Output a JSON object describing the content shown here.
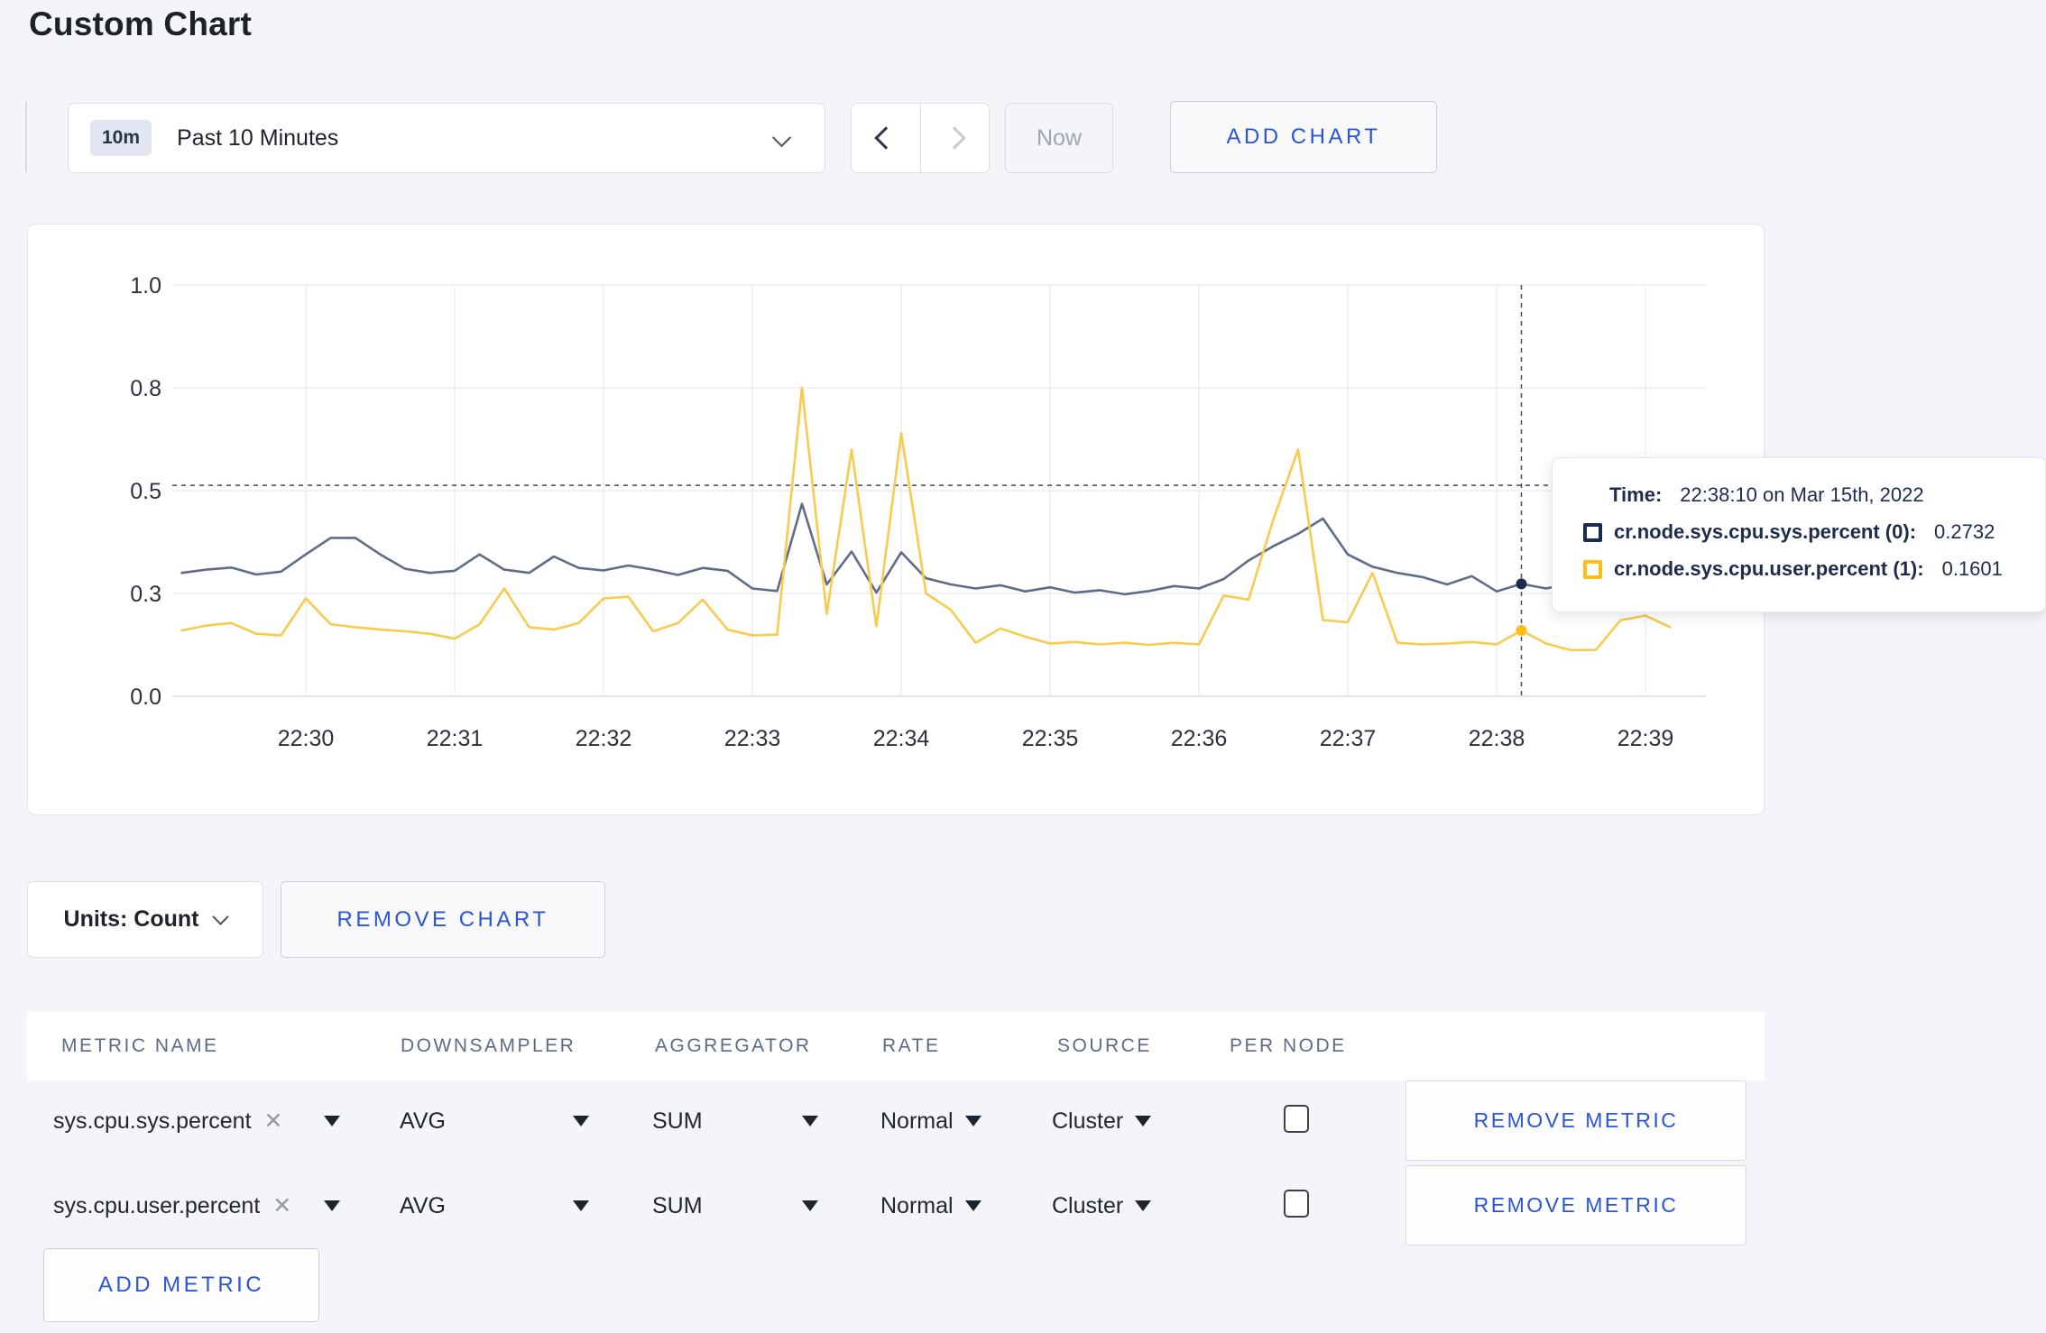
{
  "page": {
    "title": "Custom Chart"
  },
  "toolbar": {
    "time_badge": "10m",
    "time_label": "Past 10 Minutes",
    "now_label": "Now",
    "add_chart_label": "ADD CHART"
  },
  "tooltip": {
    "time_label": "Time:",
    "time_value": "22:38:10 on Mar 15th, 2022"
  },
  "units": {
    "label": "Units: Count",
    "remove_chart_label": "REMOVE CHART"
  },
  "metrics_table": {
    "headers": [
      "METRIC NAME",
      "DOWNSAMPLER",
      "AGGREGATOR",
      "RATE",
      "SOURCE",
      "PER NODE"
    ],
    "clear_icon": "✕",
    "rows": [
      {
        "metric": "sys.cpu.sys.percent",
        "downsampler": "AVG",
        "aggregator": "SUM",
        "rate": "Normal",
        "source": "Cluster",
        "per_node_checked": false,
        "remove_label": "REMOVE METRIC"
      },
      {
        "metric": "sys.cpu.user.percent",
        "downsampler": "AVG",
        "aggregator": "SUM",
        "rate": "Normal",
        "source": "Cluster",
        "per_node_checked": false,
        "remove_label": "REMOVE METRIC"
      }
    ],
    "add_metric_label": "ADD METRIC"
  },
  "chart_data": {
    "type": "line",
    "title": "",
    "grid": true,
    "legend_position": "tooltip",
    "sample_interval_sec": 10,
    "start_time": "22:29:10",
    "x_axis": {
      "labels": [
        "22:30",
        "22:31",
        "22:32",
        "22:33",
        "22:34",
        "22:35",
        "22:36",
        "22:37",
        "22:38",
        "22:39"
      ],
      "tick_start_sec": 50,
      "tick_interval_sec": 60
    },
    "y_axis": {
      "ylim": [
        0,
        1
      ],
      "ticks": [
        {
          "label": "0.0",
          "value": 0
        },
        {
          "label": "0.3",
          "value": 0.25
        },
        {
          "label": "0.5",
          "value": 0.5
        },
        {
          "label": "0.8",
          "value": 0.75
        },
        {
          "label": "1.0",
          "value": 1.0
        }
      ]
    },
    "crosshair": {
      "sec": 540,
      "time": "22:38:10",
      "hline_value": 0.513
    },
    "series": [
      {
        "name": "cr.node.sys.cpu.sys.percent",
        "tooltip_label": "cr.node.sys.cpu.sys.percent (0):",
        "tooltip_value": "0.2732",
        "highlight_value": 0.2732,
        "line_color": "#5f6c87",
        "swatch_color": "#1c2c4f",
        "values": [
          0.3,
          0.308,
          0.313,
          0.296,
          0.303,
          0.345,
          0.385,
          0.385,
          0.345,
          0.31,
          0.3,
          0.305,
          0.345,
          0.308,
          0.3,
          0.34,
          0.312,
          0.306,
          0.318,
          0.308,
          0.295,
          0.312,
          0.305,
          0.262,
          0.256,
          0.468,
          0.272,
          0.352,
          0.252,
          0.35,
          0.287,
          0.272,
          0.262,
          0.27,
          0.255,
          0.265,
          0.252,
          0.258,
          0.248,
          0.256,
          0.268,
          0.262,
          0.285,
          0.33,
          0.365,
          0.395,
          0.432,
          0.345,
          0.315,
          0.3,
          0.29,
          0.272,
          0.292,
          0.255,
          0.2732,
          0.262,
          0.275,
          0.285,
          0.295,
          0.292,
          0.29
        ]
      },
      {
        "name": "cr.node.sys.cpu.user.percent",
        "tooltip_label": "cr.node.sys.cpu.user.percent (1):",
        "tooltip_value": "0.1601",
        "highlight_value": 0.1601,
        "line_color": "#f8ca4e",
        "swatch_color": "#fdbe18",
        "values": [
          0.16,
          0.172,
          0.178,
          0.152,
          0.148,
          0.238,
          0.175,
          0.168,
          0.162,
          0.158,
          0.152,
          0.14,
          0.175,
          0.262,
          0.168,
          0.162,
          0.178,
          0.238,
          0.242,
          0.158,
          0.178,
          0.235,
          0.162,
          0.148,
          0.15,
          0.75,
          0.2,
          0.6,
          0.17,
          0.64,
          0.25,
          0.21,
          0.13,
          0.165,
          0.145,
          0.128,
          0.132,
          0.126,
          0.13,
          0.125,
          0.13,
          0.126,
          0.245,
          0.235,
          0.43,
          0.6,
          0.185,
          0.18,
          0.3,
          0.13,
          0.126,
          0.128,
          0.132,
          0.126,
          0.1601,
          0.128,
          0.112,
          0.113,
          0.185,
          0.196,
          0.168
        ]
      }
    ]
  }
}
